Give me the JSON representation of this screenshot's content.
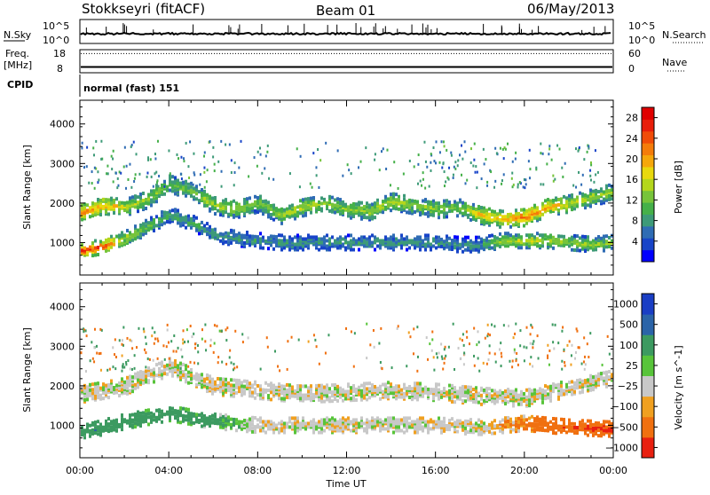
{
  "header": {
    "station": "Stokkseyri (fitACF)",
    "beam": "Beam 01",
    "date": "06/May/2013"
  },
  "noise_panel": {
    "left_label": "N.Sky",
    "right_label": "N.Search",
    "left_ticks": [
      "10^5",
      "10^0"
    ],
    "right_ticks": [
      "10^5",
      "10^0"
    ]
  },
  "freq_panel": {
    "left_label_1": "Freq.",
    "left_label_2": "[MHz]",
    "right_label": "Nave",
    "left_ticks": [
      "18",
      "8"
    ],
    "right_ticks": [
      "60",
      "0"
    ],
    "freq_mhz": 10.5,
    "nave": 50
  },
  "cpid": {
    "label": "CPID",
    "value": "normal (fast) 151"
  },
  "chart_data": [
    {
      "type": "heatmap",
      "quantity": "Power",
      "ylabel": "Slant Range [km]",
      "xlabel": "",
      "x_ticks": [
        "00:00",
        "04:00",
        "08:00",
        "12:00",
        "16:00",
        "20:00",
        "00:00"
      ],
      "xlim_hours": [
        0,
        24
      ],
      "ylim": [
        180,
        4600
      ],
      "y_ticks": [
        "1000",
        "2000",
        "3000",
        "4000"
      ],
      "colorbar": {
        "label": "Power [dB]",
        "range": [
          0,
          30
        ],
        "ticks": [
          "4",
          "8",
          "12",
          "16",
          "20",
          "24",
          "28"
        ],
        "colors": [
          "#0000ff",
          "#1844c8",
          "#2f6cb4",
          "#3d9a78",
          "#45b049",
          "#77c43a",
          "#b4d61c",
          "#e8d80e",
          "#f5a70b",
          "#f47c0a",
          "#f04c08",
          "#e81e0a",
          "#e00000"
        ]
      },
      "bands": [
        {
          "hours": [
            0,
            1,
            2,
            3,
            4,
            5,
            6,
            7,
            8,
            9,
            10,
            11,
            12,
            13,
            14,
            15,
            16,
            17,
            18,
            19,
            20,
            21,
            22,
            23,
            24
          ],
          "range_km": [
            1750,
            1950,
            1900,
            2100,
            2500,
            2300,
            1950,
            1850,
            2000,
            1700,
            1900,
            2000,
            1850,
            1800,
            2050,
            1950,
            1850,
            1900,
            1700,
            1600,
            1650,
            1900,
            2000,
            2150,
            2300
          ],
          "power_db": [
            22,
            20,
            15,
            14,
            12,
            12,
            15,
            14,
            12,
            14,
            15,
            14,
            13,
            14,
            15,
            14,
            13,
            12,
            18,
            20,
            23,
            20,
            16,
            14,
            14
          ]
        },
        {
          "hours": [
            0,
            1,
            2,
            3,
            4,
            5,
            6,
            7,
            8,
            9,
            10,
            11,
            12,
            13,
            14,
            15,
            16,
            17,
            18,
            19,
            20,
            21,
            22,
            23,
            24
          ],
          "range_km": [
            800,
            900,
            1100,
            1400,
            1700,
            1500,
            1200,
            1100,
            1050,
            1000,
            1000,
            1000,
            1000,
            1000,
            1000,
            1000,
            1000,
            950,
            950,
            1050,
            1050,
            1050,
            1000,
            950,
            1000
          ],
          "power_db": [
            26,
            24,
            15,
            12,
            10,
            10,
            8,
            8,
            8,
            8,
            8,
            8,
            8,
            8,
            8,
            8,
            8,
            8,
            8,
            14,
            16,
            15,
            13,
            14,
            12
          ]
        }
      ]
    },
    {
      "type": "heatmap",
      "quantity": "Velocity",
      "ylabel": "Slant Range [km]",
      "xlabel": "Time UT",
      "x_ticks": [
        "00:00",
        "04:00",
        "08:00",
        "12:00",
        "16:00",
        "20:00",
        "00:00"
      ],
      "xlim_hours": [
        0,
        24
      ],
      "ylim": [
        180,
        4600
      ],
      "y_ticks": [
        "1000",
        "2000",
        "3000",
        "4000"
      ],
      "colorbar": {
        "label": "Velocity [m s^-1]",
        "ticks": [
          "1000",
          "500",
          "100",
          "25",
          "−25",
          "−100",
          "−500",
          "−1000"
        ],
        "colors": [
          "#1a3ec4",
          "#2b64a8",
          "#3c9a60",
          "#58c43a",
          "#c8c8c8",
          "#f0a020",
          "#f07010",
          "#e82010"
        ]
      },
      "bands": [
        {
          "hours": [
            0,
            2,
            4,
            6,
            8,
            10,
            12,
            14,
            16,
            18,
            20,
            22,
            24
          ],
          "range_km": [
            1800,
            2000,
            2500,
            2000,
            1900,
            1800,
            1850,
            1900,
            1850,
            1750,
            1700,
            1950,
            2200
          ],
          "velocity": [
            0,
            0,
            0,
            0,
            0,
            0,
            0,
            0,
            0,
            0,
            0,
            0,
            0
          ]
        },
        {
          "hours": [
            0,
            2,
            4,
            6,
            8,
            10,
            12,
            14,
            16,
            18,
            20,
            22,
            24
          ],
          "range_km": [
            800,
            1100,
            1300,
            1100,
            1000,
            1000,
            1000,
            1000,
            1000,
            950,
            1050,
            950,
            900
          ],
          "velocity": [
            300,
            200,
            150,
            120,
            0,
            0,
            0,
            0,
            0,
            0,
            -100,
            -300,
            -400
          ]
        }
      ]
    }
  ]
}
